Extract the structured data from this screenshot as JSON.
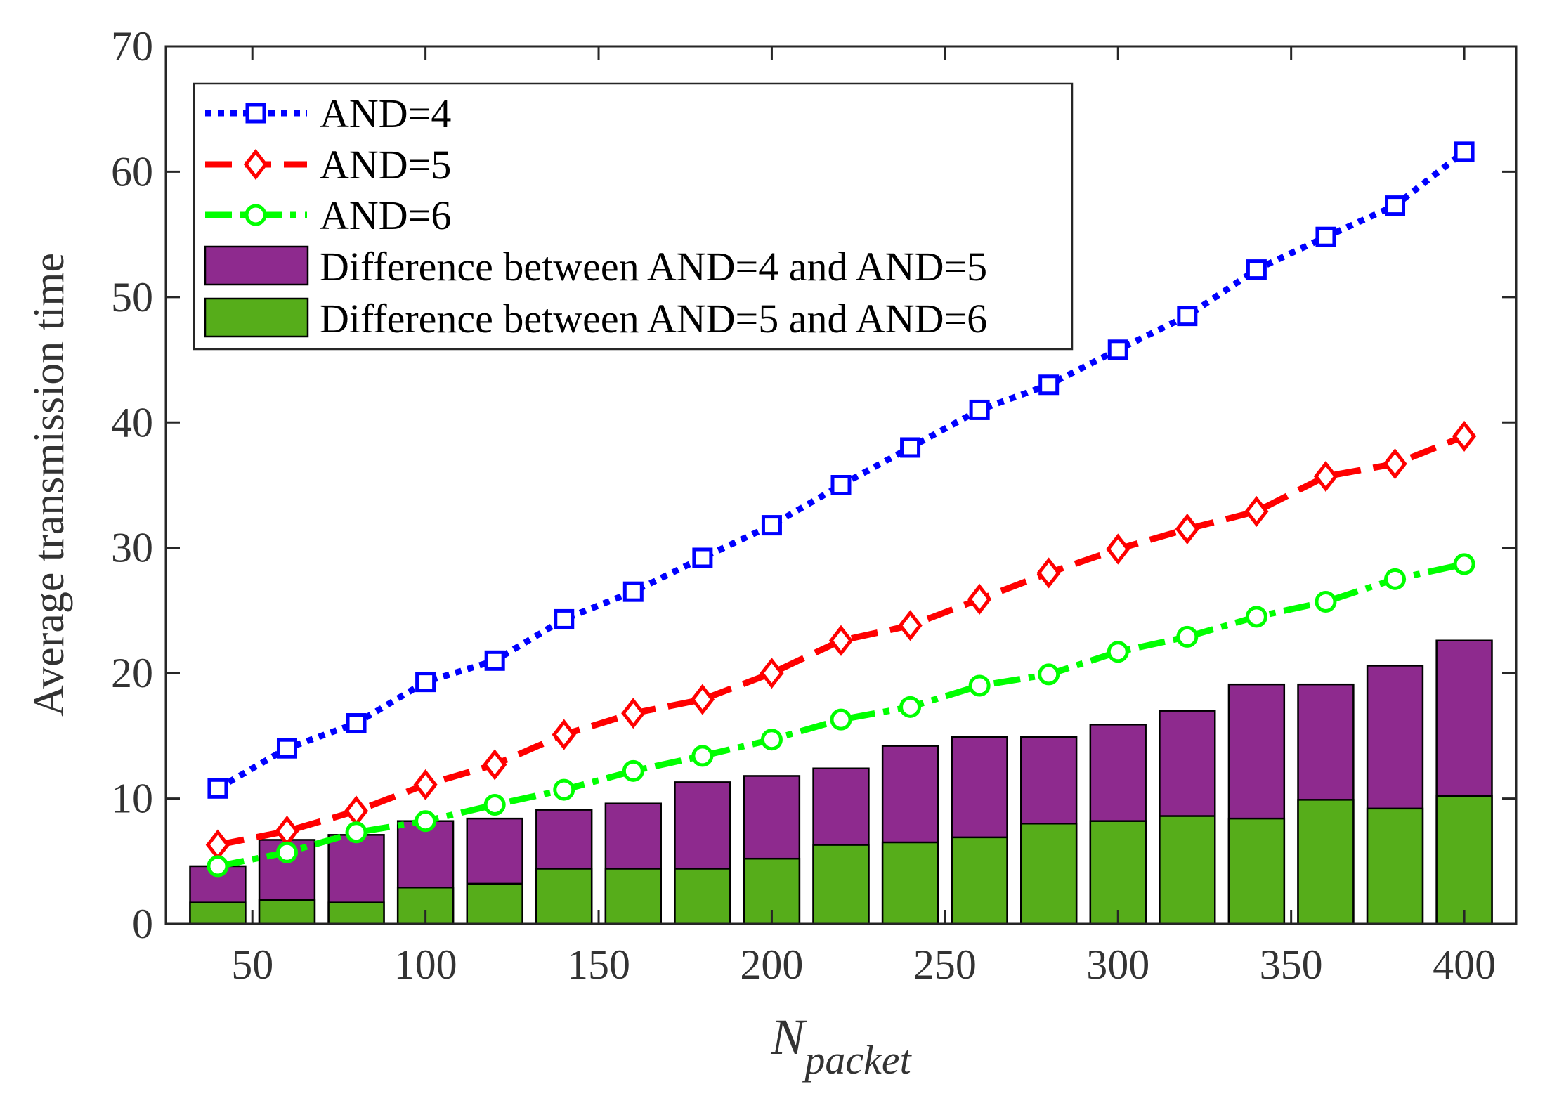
{
  "chart_data": {
    "type": "bar",
    "title": "",
    "xlabel": {
      "main": "N",
      "sub": "packet"
    },
    "ylabel": "Average transmission time",
    "xlim": [
      25,
      415
    ],
    "ylim": [
      0,
      70
    ],
    "xticks": [
      50,
      100,
      150,
      200,
      250,
      300,
      350,
      400
    ],
    "yticks": [
      0,
      10,
      20,
      30,
      40,
      50,
      60,
      70
    ],
    "grid": false,
    "legend_position": "top-left",
    "x": [
      40,
      60,
      80,
      100,
      120,
      140,
      160,
      180,
      200,
      220,
      240,
      260,
      280,
      300,
      320,
      340,
      360,
      380,
      400
    ],
    "lines": [
      {
        "name": "AND=4",
        "color": "#0000ff",
        "style": "dotted",
        "marker": "square",
        "values": [
          10.8,
          14.0,
          16.0,
          19.3,
          21.0,
          24.3,
          26.5,
          29.2,
          31.8,
          35.0,
          38.0,
          41.0,
          43.0,
          45.8,
          48.5,
          52.2,
          54.8,
          57.3,
          61.6
        ]
      },
      {
        "name": "AND=5",
        "color": "#ff0000",
        "style": "dashed",
        "marker": "diamond",
        "values": [
          6.3,
          7.4,
          9.0,
          11.1,
          12.7,
          15.1,
          16.8,
          17.9,
          20.0,
          22.6,
          23.8,
          25.9,
          28.0,
          29.9,
          31.5,
          32.9,
          35.7,
          36.7,
          38.9
        ]
      },
      {
        "name": "AND=6",
        "color": "#00ff00",
        "style": "dashdot",
        "marker": "circle",
        "values": [
          4.6,
          5.7,
          7.3,
          8.2,
          9.5,
          10.7,
          12.2,
          13.4,
          14.7,
          16.3,
          17.3,
          19.0,
          19.9,
          21.7,
          22.9,
          24.5,
          25.7,
          27.5,
          28.7
        ]
      }
    ],
    "bars": [
      {
        "name": "Difference between AND=4 and AND=5",
        "color": "#8e2a8e",
        "values": [
          4.6,
          6.7,
          7.1,
          8.2,
          8.4,
          9.1,
          9.6,
          11.3,
          11.8,
          12.4,
          14.2,
          14.9,
          14.9,
          15.9,
          17.0,
          19.1,
          19.1,
          20.6,
          22.6
        ]
      },
      {
        "name": "Difference between AND=5 and AND=6",
        "color": "#56ad1a",
        "values": [
          1.7,
          1.9,
          1.7,
          2.9,
          3.2,
          4.4,
          4.4,
          4.4,
          5.2,
          6.3,
          6.5,
          6.9,
          8.0,
          8.2,
          8.6,
          8.4,
          9.9,
          9.2,
          10.2
        ]
      }
    ]
  }
}
